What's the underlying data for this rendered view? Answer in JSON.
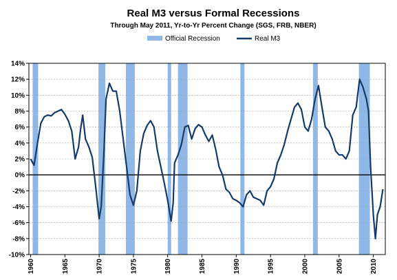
{
  "chart_data": {
    "type": "line",
    "title": "Real M3 versus Formal Recessions",
    "subtitle": "Through May 2011, Yr-to-Yr  Percent Change (SGS, FRB, NBER)",
    "xlabel": "",
    "ylabel": "",
    "xlim": [
      1959.75,
      2011.75
    ],
    "ylim": [
      -10,
      14
    ],
    "y_ticks": [
      14,
      12,
      10,
      8,
      6,
      4,
      2,
      0,
      -2,
      -4,
      -6,
      -8,
      -10
    ],
    "y_tick_labels": [
      "14%",
      "12%",
      "10%",
      "8%",
      "6%",
      "4%",
      "2%",
      "0%",
      "-2%",
      "-4%",
      "-6%",
      "-8%",
      "-10%"
    ],
    "x_ticks": [
      1960,
      1965,
      1970,
      1975,
      1980,
      1985,
      1990,
      1995,
      2000,
      2005,
      2010
    ],
    "x_tick_labels": [
      "1960",
      "1965",
      "1970",
      "1975",
      "1980",
      "1985",
      "1990",
      "1995",
      "2000",
      "2005",
      "2010"
    ],
    "grid": "horizontal",
    "legend_position": "top-center",
    "colors": {
      "recession": "#8fb8e6",
      "line": "#14396b",
      "zero_line": "#000000",
      "grid": "#9e9e9e"
    },
    "recessions": {
      "name": "Official Recession",
      "periods": [
        [
          1960.3,
          1961.1
        ],
        [
          1969.9,
          1970.9
        ],
        [
          1973.9,
          1975.2
        ],
        [
          1980.0,
          1980.5
        ],
        [
          1981.5,
          1982.9
        ],
        [
          1990.6,
          1991.2
        ],
        [
          2001.2,
          2001.9
        ],
        [
          2007.9,
          2009.5
        ]
      ]
    },
    "series": [
      {
        "name": "Real M3",
        "x": [
          1960.0,
          1960.5,
          1961.0,
          1961.5,
          1962.0,
          1962.5,
          1963.0,
          1963.5,
          1964.0,
          1964.5,
          1965.0,
          1965.5,
          1966.0,
          1966.5,
          1967.0,
          1967.3,
          1967.6,
          1968.0,
          1968.5,
          1969.0,
          1969.5,
          1970.0,
          1970.3,
          1970.7,
          1971.0,
          1971.5,
          1972.0,
          1972.5,
          1973.0,
          1973.5,
          1974.0,
          1974.5,
          1975.0,
          1975.5,
          1976.0,
          1976.5,
          1977.0,
          1977.5,
          1978.0,
          1978.5,
          1979.0,
          1979.5,
          1980.0,
          1980.5,
          1980.8,
          1981.0,
          1981.5,
          1982.0,
          1982.5,
          1983.0,
          1983.5,
          1984.0,
          1984.5,
          1985.0,
          1985.5,
          1986.0,
          1986.5,
          1987.0,
          1987.5,
          1988.0,
          1988.5,
          1989.0,
          1989.5,
          1990.0,
          1990.5,
          1991.0,
          1991.5,
          1992.0,
          1992.5,
          1993.0,
          1993.5,
          1994.0,
          1994.5,
          1995.0,
          1995.5,
          1996.0,
          1996.5,
          1997.0,
          1997.5,
          1998.0,
          1998.5,
          1999.0,
          1999.5,
          2000.0,
          2000.5,
          2001.0,
          2001.5,
          2002.0,
          2002.5,
          2003.0,
          2003.5,
          2004.0,
          2004.5,
          2005.0,
          2005.5,
          2006.0,
          2006.5,
          2007.0,
          2007.5,
          2008.0,
          2008.5,
          2009.0,
          2009.3,
          2009.6,
          2010.0,
          2010.3,
          2010.6,
          2011.0,
          2011.4
        ],
        "values": [
          2.0,
          1.2,
          4.0,
          6.5,
          7.3,
          7.5,
          7.4,
          7.8,
          8.0,
          8.2,
          7.6,
          6.8,
          5.5,
          2.0,
          3.5,
          5.8,
          7.5,
          4.5,
          3.5,
          2.2,
          -1.5,
          -5.5,
          -4.0,
          3.0,
          9.5,
          11.5,
          10.5,
          10.5,
          8.0,
          4.5,
          1.0,
          -2.5,
          -3.8,
          -2.0,
          3.0,
          5.2,
          6.2,
          6.8,
          6.0,
          3.0,
          1.0,
          -1.0,
          -3.2,
          -5.8,
          -3.5,
          1.5,
          2.5,
          3.8,
          6.0,
          6.2,
          4.5,
          5.8,
          6.3,
          6.0,
          5.0,
          4.2,
          5.0,
          3.2,
          1.0,
          0.0,
          -1.8,
          -2.2,
          -3.0,
          -3.2,
          -3.5,
          -4.0,
          -2.5,
          -2.0,
          -2.8,
          -3.0,
          -3.2,
          -3.8,
          -2.0,
          -1.5,
          -0.5,
          1.5,
          2.5,
          3.8,
          5.5,
          7.0,
          8.5,
          9.0,
          8.2,
          6.0,
          5.5,
          7.0,
          9.5,
          11.2,
          8.5,
          6.0,
          5.5,
          4.5,
          3.0,
          2.5,
          2.5,
          2.0,
          3.0,
          7.5,
          8.5,
          12.0,
          11.0,
          9.5,
          8.0,
          1.0,
          -5.0,
          -8.0,
          -5.0,
          -4.0,
          -1.8
        ]
      }
    ]
  }
}
